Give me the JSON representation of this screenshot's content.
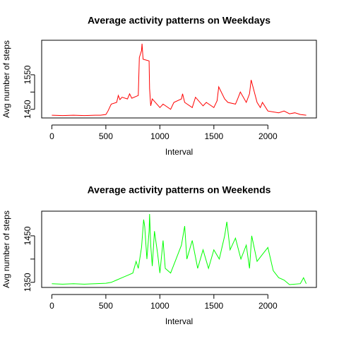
{
  "chart_data": [
    {
      "type": "line",
      "title": "Average activity patterns on Weekdays",
      "xlabel": "Interval",
      "ylabel": "Avg number of steps",
      "x": [
        0,
        100,
        200,
        300,
        400,
        450,
        500,
        520,
        550,
        600,
        615,
        630,
        650,
        700,
        720,
        740,
        800,
        810,
        830,
        835,
        845,
        900,
        905,
        915,
        930,
        1000,
        1030,
        1100,
        1130,
        1200,
        1210,
        1230,
        1300,
        1330,
        1400,
        1430,
        1500,
        1530,
        1545,
        1600,
        1630,
        1700,
        1720,
        1745,
        1800,
        1830,
        1845,
        1900,
        1930,
        1950,
        2000,
        2100,
        2150,
        2200,
        2250,
        2300,
        2355
      ],
      "series": [
        {
          "color": "#ff0000",
          "values": [
            1433,
            1432,
            1433,
            1432,
            1433,
            1433,
            1435,
            1445,
            1465,
            1470,
            1490,
            1478,
            1485,
            1480,
            1495,
            1482,
            1490,
            1600,
            1620,
            1640,
            1595,
            1590,
            1510,
            1460,
            1480,
            1455,
            1465,
            1450,
            1470,
            1480,
            1495,
            1470,
            1455,
            1485,
            1460,
            1470,
            1455,
            1475,
            1515,
            1480,
            1470,
            1465,
            1480,
            1500,
            1470,
            1495,
            1535,
            1470,
            1455,
            1470,
            1445,
            1440,
            1445,
            1437,
            1440,
            1435,
            1433
          ]
        }
      ],
      "xlim": [
        -94.2,
        2449.2
      ],
      "ylim": [
        1425,
        1650
      ],
      "xticks": [
        0,
        500,
        1000,
        1500,
        2000
      ],
      "yticks": [
        1450,
        1500,
        1550
      ]
    },
    {
      "type": "line",
      "title": "Average activity patterns on Weekends",
      "xlabel": "Interval",
      "ylabel": "Avg number of steps",
      "x": [
        0,
        100,
        200,
        300,
        400,
        500,
        550,
        600,
        650,
        700,
        750,
        780,
        800,
        830,
        850,
        860,
        880,
        900,
        905,
        915,
        930,
        950,
        980,
        1000,
        1030,
        1050,
        1100,
        1150,
        1200,
        1230,
        1250,
        1300,
        1350,
        1400,
        1450,
        1500,
        1550,
        1600,
        1620,
        1650,
        1700,
        1750,
        1800,
        1830,
        1850,
        1900,
        1950,
        2000,
        2050,
        2100,
        2150,
        2200,
        2300,
        2330,
        2355
      ],
      "series": [
        {
          "color": "#00ff00",
          "values": [
            1347,
            1346,
            1347,
            1346,
            1347,
            1348,
            1350,
            1355,
            1360,
            1365,
            1370,
            1395,
            1380,
            1425,
            1485,
            1470,
            1400,
            1460,
            1497,
            1430,
            1385,
            1460,
            1410,
            1370,
            1440,
            1380,
            1370,
            1400,
            1430,
            1471,
            1400,
            1440,
            1380,
            1420,
            1380,
            1420,
            1400,
            1450,
            1480,
            1420,
            1445,
            1400,
            1430,
            1380,
            1450,
            1395,
            1410,
            1425,
            1375,
            1360,
            1355,
            1345,
            1347,
            1360,
            1347
          ]
        }
      ],
      "xlim": [
        -94.2,
        2449.2
      ],
      "ylim": [
        1339,
        1503
      ],
      "xticks": [
        0,
        500,
        1000,
        1500,
        2000
      ],
      "yticks": [
        1350,
        1400,
        1450
      ]
    }
  ]
}
